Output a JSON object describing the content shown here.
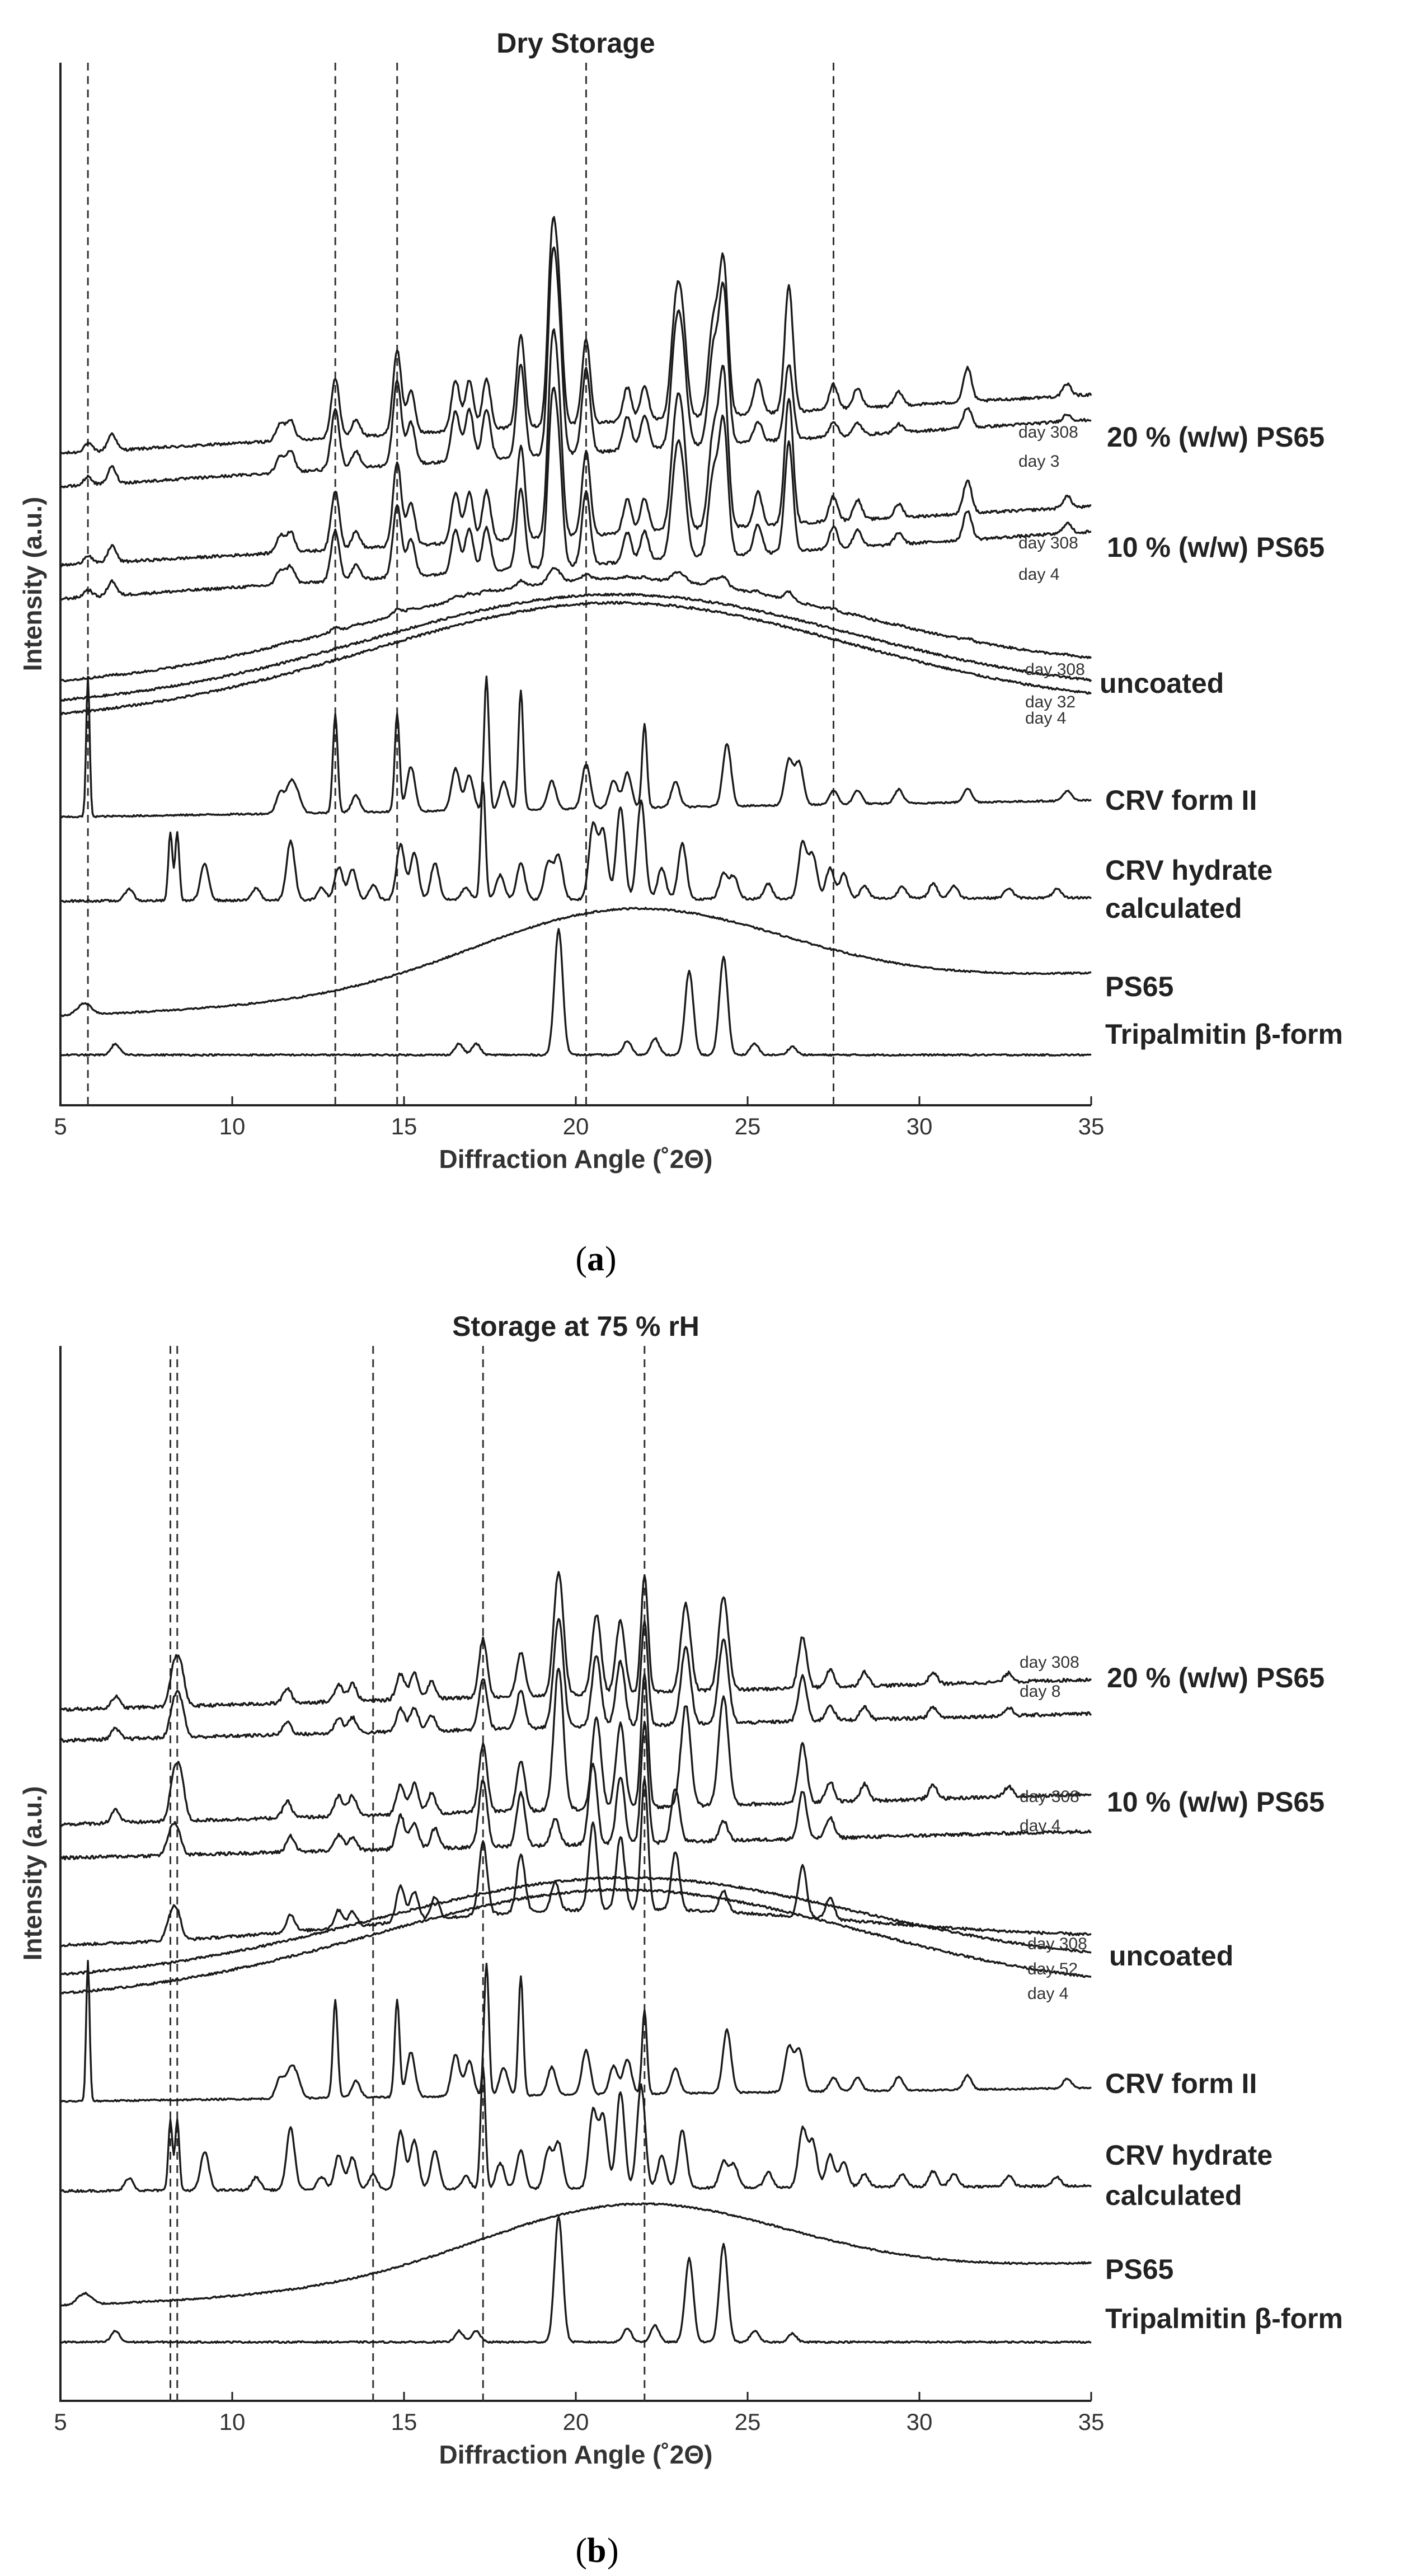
{
  "chart_data": [
    {
      "type": "line",
      "panel_caption": "a",
      "title": "Dry Storage",
      "xlabel": "Diffraction Angle (˚2Θ)",
      "ylabel": "Intensity (a.u.)",
      "xlim": [
        5,
        35
      ],
      "xticks": [
        5,
        10,
        15,
        20,
        25,
        30,
        35
      ],
      "reference_lines": [
        5.8,
        13.0,
        14.8,
        20.3,
        27.5
      ],
      "groups": [
        {
          "name": "20 % (w/w) PS65",
          "series": [
            "day 308",
            "day 3"
          ]
        },
        {
          "name": "10 % (w/w) PS65",
          "series": [
            "day 308",
            "day 4"
          ]
        },
        {
          "name": "uncoated",
          "series": [
            "day 308",
            "day 32",
            "day 4"
          ]
        },
        {
          "name": "CRV form II",
          "series": []
        },
        {
          "name": "CRV hydrate calculated",
          "series": []
        },
        {
          "name": "PS65",
          "series": []
        },
        {
          "name": "Tripalmitin β-form",
          "series": []
        }
      ]
    },
    {
      "type": "line",
      "panel_caption": "b",
      "title": "Storage at 75 % rH",
      "xlabel": "Diffraction Angle (˚2Θ)",
      "ylabel": "Intensity (a.u.)",
      "xlim": [
        5,
        35
      ],
      "xticks": [
        5,
        10,
        15,
        20,
        25,
        30,
        35
      ],
      "reference_lines": [
        8.2,
        8.4,
        14.1,
        17.3,
        22.0
      ],
      "groups": [
        {
          "name": "20 % (w/w) PS65",
          "series": [
            "day 308",
            "day 8"
          ]
        },
        {
          "name": "10 % (w/w) PS65",
          "series": [
            "day 308",
            "day 4"
          ]
        },
        {
          "name": "uncoated",
          "series": [
            "day 308",
            "day 52",
            "day 4"
          ]
        },
        {
          "name": "CRV form II",
          "series": []
        },
        {
          "name": "CRV hydrate calculated",
          "series": []
        },
        {
          "name": "PS65",
          "series": []
        },
        {
          "name": "Tripalmitin β-form",
          "series": []
        }
      ]
    }
  ]
}
